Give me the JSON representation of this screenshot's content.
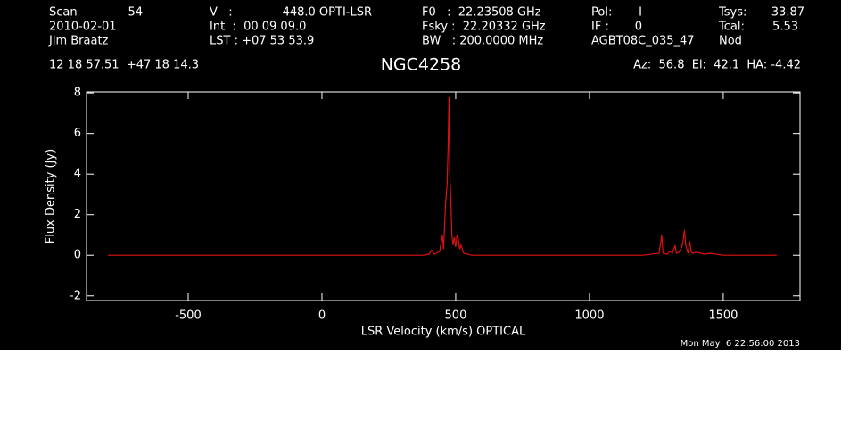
{
  "header": {
    "lines": [
      "Scan",
      "54",
      "2010-02-01",
      "Jim Braatz",
      "V   :",
      "448.0 OPTI-LSR",
      "Int  :  00 09 09.0",
      "LST : +07 53 53.9",
      "F0   :  22.23508 GHz",
      "Fsky :  22.20332 GHz",
      "BW   : 200.0000 MHz",
      "Pol:",
      "I",
      "IF :",
      "0",
      "AGBT08C_035_47",
      "Tsys:",
      "33.87",
      "Tcal:",
      "5.53",
      "Nod",
      "12 18 57.51  +47 18 14.3",
      "Az:  56.8  El:  42.1  HA: -4.42"
    ],
    "timestamp": "Mon May  6 22:56:00 2013"
  },
  "chart_data": {
    "type": "line",
    "title": "NGC4258",
    "x_label": "LSR Velocity (km/s) OPTICAL",
    "y_label": "Flux Density (Jy)",
    "color": "#e01010",
    "x": [
      -800,
      -600,
      -400,
      -200,
      0,
      200,
      380,
      400,
      410,
      420,
      440,
      450,
      455,
      462,
      468,
      472,
      475,
      478,
      482,
      486,
      490,
      495,
      500,
      505,
      510,
      515,
      520,
      530,
      560,
      800,
      1000,
      1200,
      1260,
      1265,
      1270,
      1275,
      1290,
      1300,
      1310,
      1320,
      1325,
      1335,
      1345,
      1350,
      1355,
      1360,
      1368,
      1375,
      1380,
      1385,
      1400,
      1430,
      1450,
      1500,
      1600,
      1700
    ],
    "values": [
      0,
      0,
      0,
      0,
      0,
      0,
      0,
      0.05,
      0.25,
      0.05,
      0.2,
      1.0,
      0.3,
      2.5,
      3.5,
      5.5,
      7.8,
      4.0,
      2.8,
      1.0,
      0.5,
      0.9,
      0.4,
      1.0,
      0.8,
      0.3,
      0.5,
      0.1,
      0,
      0,
      0,
      0,
      0.1,
      0.5,
      1.0,
      0.1,
      0.05,
      0.2,
      0.1,
      0.5,
      0.1,
      0.15,
      0.4,
      0.7,
      1.25,
      0.5,
      0.1,
      0.7,
      0.2,
      0.1,
      0.15,
      0.05,
      0.1,
      0,
      0,
      0
    ],
    "xlim": [
      -880,
      1787
    ],
    "ylim": [
      -2.23,
      8.05
    ],
    "xticks": [
      -500,
      0,
      500,
      1000,
      1500
    ],
    "yticks": [
      -2,
      0,
      2,
      4,
      6,
      8
    ]
  }
}
